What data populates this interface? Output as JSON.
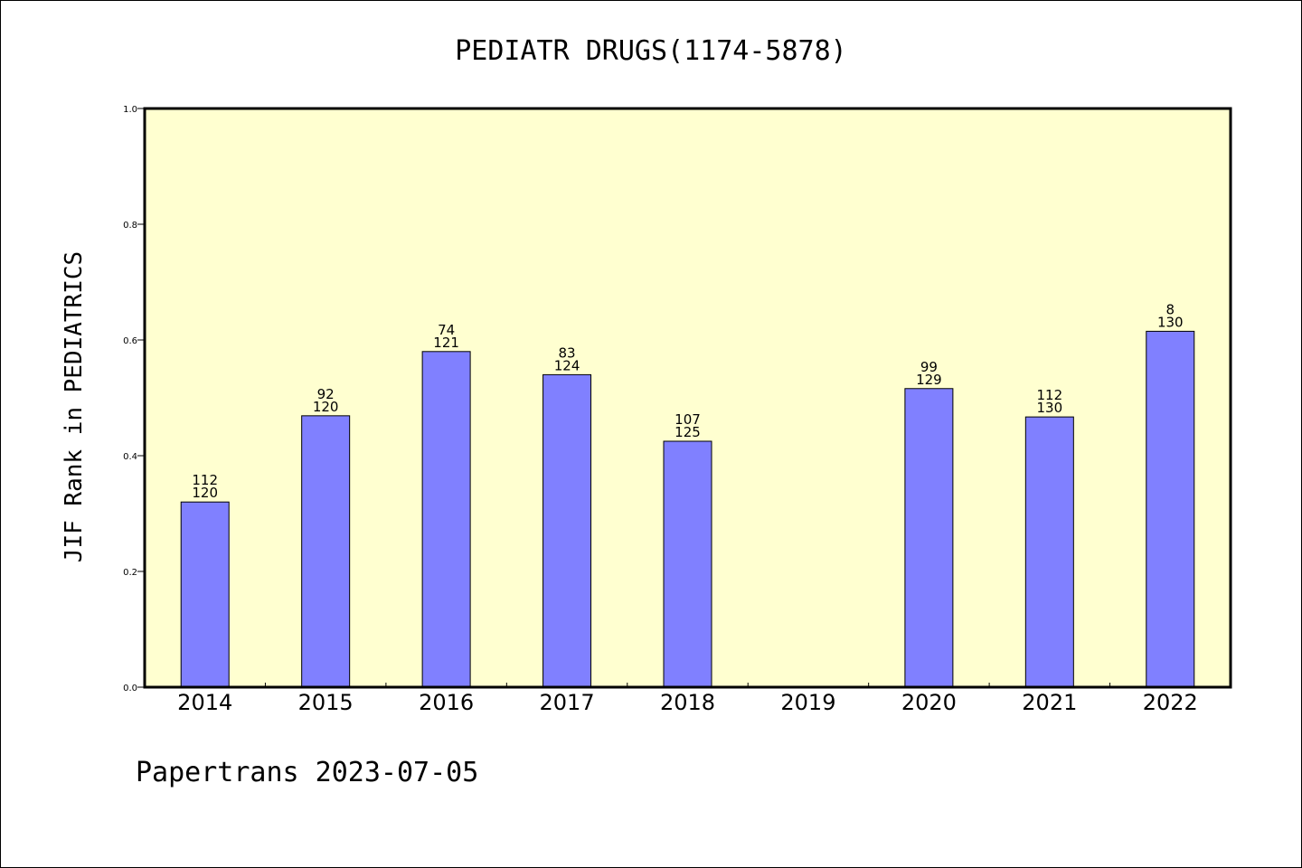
{
  "chart_data": {
    "type": "bar",
    "title": "PEDIATR DRUGS(1174-5878)",
    "ylabel": "JIF Rank in PEDIATRICS",
    "ylim": [
      0,
      1.0
    ],
    "yticks": [
      "0.0",
      "0.2",
      "0.4",
      "0.6",
      "0.8",
      "1.0"
    ],
    "categories": [
      "2014",
      "2015",
      "2016",
      "2017",
      "2018",
      "2019",
      "2020",
      "2021",
      "2022"
    ],
    "values": [
      0.32,
      0.469,
      0.58,
      0.54,
      0.425,
      null,
      0.516,
      0.467,
      0.615
    ],
    "labels_top": [
      "112",
      "92",
      "74",
      "83",
      "107",
      "",
      "99",
      "112",
      "8"
    ],
    "labels_bottom": [
      "120",
      "120",
      "121",
      "124",
      "125",
      "",
      "129",
      "130",
      "130"
    ],
    "bar_color": "#8080ff",
    "plot_background": "#ffffd0",
    "grid": false
  },
  "footer": "Papertrans 2023-07-05"
}
